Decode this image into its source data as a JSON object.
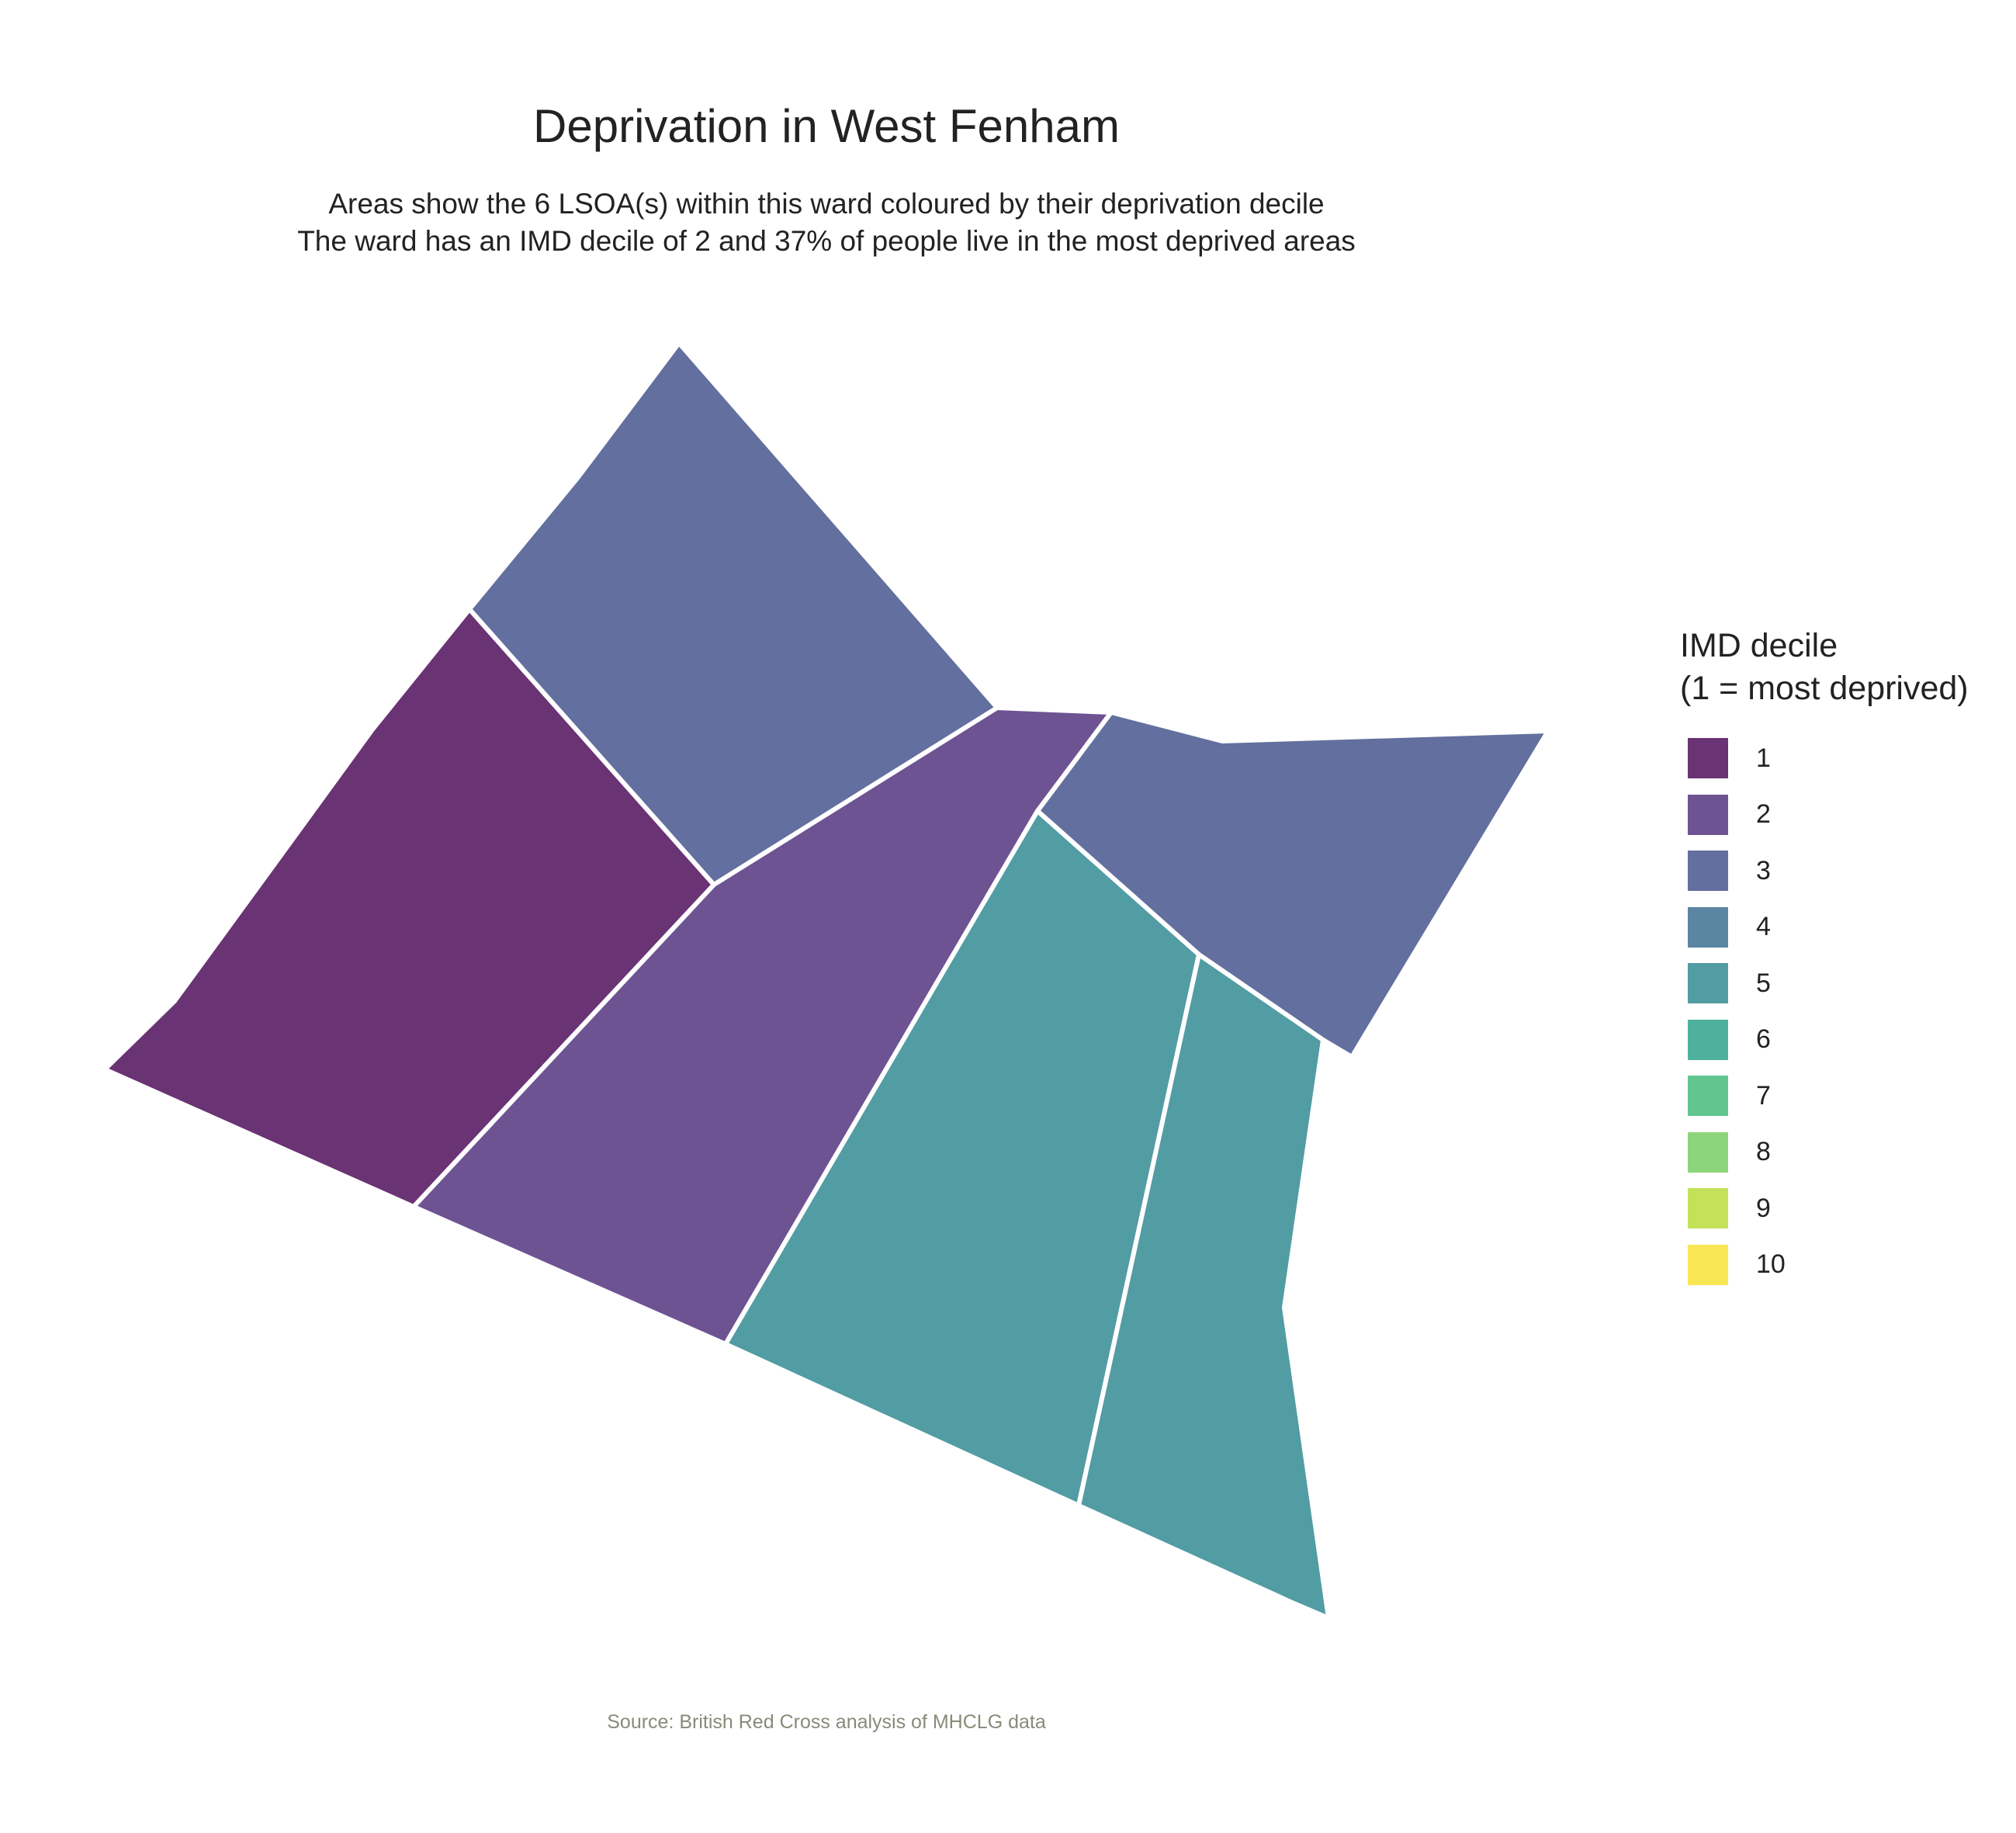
{
  "title": "Deprivation in West Fenham",
  "subtitle": [
    "Areas show the 6 LSOA(s) within this ward coloured by their deprivation decile",
    "The ward has an IMD decile of 2 and 37% of people live in the most deprived areas"
  ],
  "legend": {
    "title_lines": [
      "IMD decile",
      "(1 = most deprived)"
    ],
    "items": [
      {
        "label": "1",
        "color": "#6a3374"
      },
      {
        "label": "2",
        "color": "#6e5393"
      },
      {
        "label": "3",
        "color": "#636f9e"
      },
      {
        "label": "4",
        "color": "#5b86a2"
      },
      {
        "label": "5",
        "color": "#529ca4"
      },
      {
        "label": "6",
        "color": "#4fb09e"
      },
      {
        "label": "7",
        "color": "#61c590"
      },
      {
        "label": "8",
        "color": "#8dd57a"
      },
      {
        "label": "9",
        "color": "#c4e15a"
      },
      {
        "label": "10",
        "color": "#f9e655"
      }
    ]
  },
  "areas": [
    {
      "decile": 1
    },
    {
      "decile": 3
    },
    {
      "decile": 2
    },
    {
      "decile": 3
    },
    {
      "decile": 5
    },
    {
      "decile": 5
    }
  ],
  "caption": "Source: British Red Cross analysis of MHCLG data"
}
